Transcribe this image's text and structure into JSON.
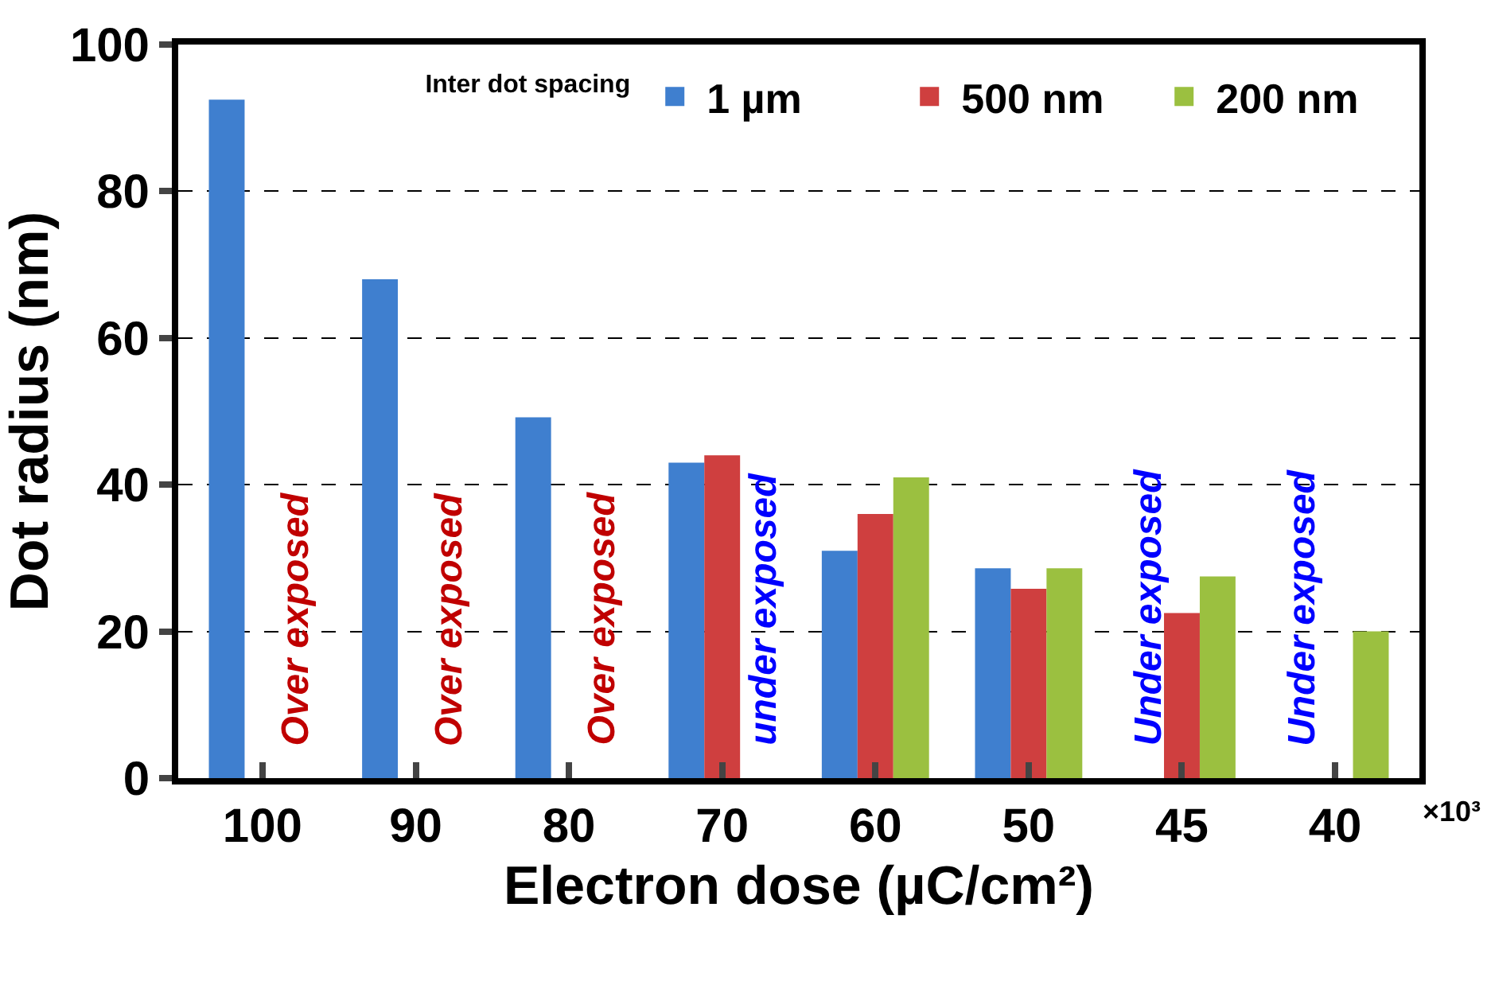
{
  "chart_data": {
    "type": "bar",
    "categories": [
      "100",
      "90",
      "80",
      "70",
      "60",
      "50",
      "45",
      "40"
    ],
    "series": [
      {
        "name": "1 µm",
        "color": "#3f7fcf",
        "values": [
          92.5,
          68,
          49.2,
          43,
          31,
          28.6,
          null,
          null
        ]
      },
      {
        "name": "500 nm",
        "color": "#cf3f3f",
        "values": [
          null,
          null,
          null,
          44,
          36,
          25.8,
          22.5,
          null
        ]
      },
      {
        "name": "200 nm",
        "color": "#9bc040",
        "values": [
          null,
          null,
          null,
          null,
          41,
          28.6,
          27.5,
          20
        ]
      }
    ],
    "ylim": [
      0,
      100
    ],
    "yticks": [
      0,
      20,
      40,
      60,
      80,
      100
    ],
    "grid": "y",
    "legend": "top right",
    "legend_title": "Inter dot spacing",
    "xlabel": "Electron dose (µC/cm²)",
    "ylabel": "Dot radius (nm)",
    "annotations": [
      "Over exposed",
      "Over exposed",
      "Over exposed",
      "under exposed",
      "Under exposed",
      "Under exposed",
      "×10³"
    ]
  }
}
